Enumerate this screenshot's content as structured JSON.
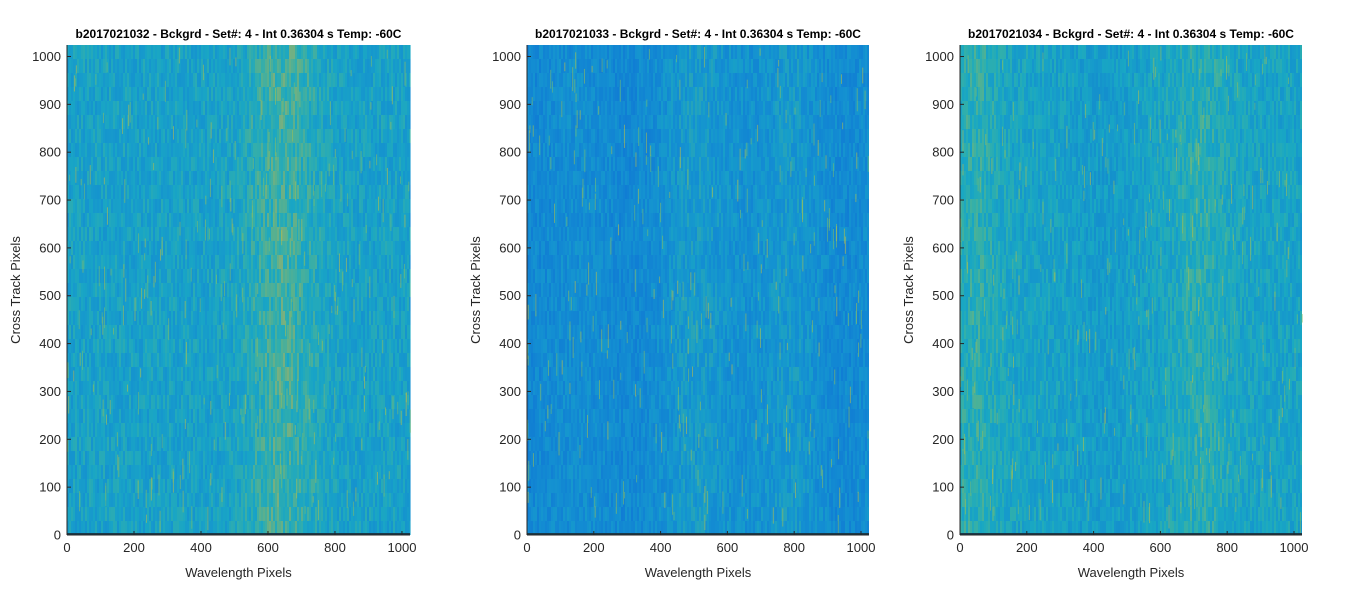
{
  "chart_data": [
    {
      "type": "heatmap",
      "title": "b2017021032 - Bckgrd - Set#: 4 - Int 0.36304 s Temp: -60C",
      "xlabel": "Wavelength Pixels",
      "ylabel": "Cross Track Pixels",
      "xlim": [
        0,
        1024
      ],
      "ylim": [
        0,
        1024
      ],
      "xticks": [
        0,
        200,
        400,
        600,
        800,
        1000
      ],
      "yticks": [
        0,
        100,
        200,
        300,
        400,
        500,
        600,
        700,
        800,
        900,
        1000
      ],
      "colormap": "parula",
      "base_color": "#1aa0c8",
      "bright_band_columns": [
        600,
        680
      ],
      "dark_band_columns": [],
      "bottom_row_dark": true
    },
    {
      "type": "heatmap",
      "title": "b2017021033 - Bckgrd - Set#: 4 - Int 0.36304 s Temp: -60C",
      "xlabel": "Wavelength Pixels",
      "ylabel": "Cross Track Pixels",
      "xlim": [
        0,
        1024
      ],
      "ylim": [
        0,
        1024
      ],
      "xticks": [
        0,
        200,
        400,
        600,
        800,
        1000
      ],
      "yticks": [
        0,
        100,
        200,
        300,
        400,
        500,
        600,
        700,
        800,
        900,
        1000
      ],
      "colormap": "parula",
      "base_color": "#1590d0",
      "bright_band_columns": [
        500,
        800
      ],
      "dark_band_columns": [
        0,
        300,
        920
      ],
      "bottom_row_dark": true
    },
    {
      "type": "heatmap",
      "title": "b2017021034 - Bckgrd - Set#: 4 - Int 0.36304 s Temp: -60C",
      "xlabel": "Wavelength Pixels",
      "ylabel": "Cross Track Pixels",
      "xlim": [
        0,
        1024
      ],
      "ylim": [
        0,
        1024
      ],
      "xticks": [
        0,
        200,
        400,
        600,
        800,
        1000
      ],
      "yticks": [
        0,
        100,
        200,
        300,
        400,
        500,
        600,
        700,
        800,
        900,
        1000
      ],
      "colormap": "parula",
      "base_color": "#1aa4c4",
      "bright_band_columns": [
        40,
        720
      ],
      "dark_band_columns": [
        420
      ],
      "bottom_row_dark": true
    }
  ]
}
